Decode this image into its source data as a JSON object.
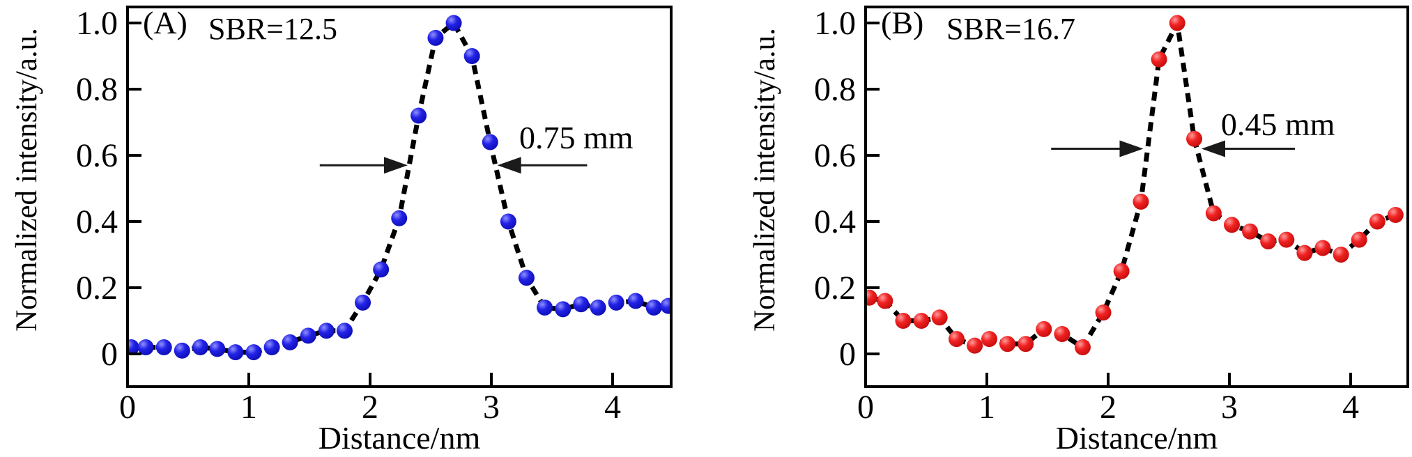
{
  "figure": {
    "background": "#ffffff",
    "axis_color": "#000000",
    "curve_color": "#000000",
    "annotation_color": "#1a1a1a"
  },
  "chart_data": [
    {
      "type": "line",
      "panel_id": "A",
      "panel_label": "(A)",
      "sbr_label": "SBR=12.5",
      "xlabel": "Distance/nm",
      "ylabel": "Normalized intensity/a.u.",
      "xlim": [
        0,
        4.48
      ],
      "ylim": [
        -0.1,
        1.05
      ],
      "x_ticks": [
        0,
        1,
        2,
        3,
        4
      ],
      "x_tick_labels": [
        "0",
        "1",
        "2",
        "3",
        "4"
      ],
      "y_ticks": [
        0,
        0.2,
        0.4,
        0.6,
        0.8,
        1.0
      ],
      "y_tick_labels": [
        "0",
        "0.2",
        "0.4",
        "0.6",
        "0.8",
        "1.0"
      ],
      "grid": false,
      "line_style": "dashed",
      "marker": "circle",
      "marker_color": "#1c1ce0",
      "marker_gradient": [
        "#9090ff",
        "#2222e6",
        "#0d0db4"
      ],
      "series": [
        {
          "name": "intensity-profile-A",
          "x": [
            0.03,
            0.15,
            0.3,
            0.45,
            0.6,
            0.74,
            0.89,
            1.04,
            1.19,
            1.34,
            1.49,
            1.64,
            1.79,
            1.94,
            2.09,
            2.24,
            2.4,
            2.54,
            2.69,
            2.84,
            2.99,
            3.14,
            3.29,
            3.44,
            3.59,
            3.74,
            3.88,
            4.03,
            4.19,
            4.34,
            4.46
          ],
          "y": [
            0.02,
            0.02,
            0.02,
            0.01,
            0.02,
            0.015,
            0.005,
            0.005,
            0.02,
            0.035,
            0.055,
            0.07,
            0.07,
            0.155,
            0.255,
            0.41,
            0.72,
            0.955,
            1.0,
            0.9,
            0.64,
            0.4,
            0.23,
            0.14,
            0.135,
            0.15,
            0.14,
            0.155,
            0.16,
            0.14,
            0.145
          ]
        }
      ],
      "fwhm_annotation": {
        "text": "0.75 mm",
        "arrow_y": 0.57,
        "left_arrow": {
          "tail_x": 1.585,
          "tip_x": 2.31
        },
        "right_arrow": {
          "tail_x": 3.79,
          "tip_x": 3.05
        },
        "text_x": 3.7,
        "text_y": 0.655
      }
    },
    {
      "type": "line",
      "panel_id": "B",
      "panel_label": "(B)",
      "sbr_label": "SBR=16.7",
      "xlabel": "Distance/nm",
      "ylabel": "Normalized intensity/a.u.",
      "xlim": [
        0,
        4.47
      ],
      "ylim": [
        -0.1,
        1.05
      ],
      "x_ticks": [
        0,
        1,
        2,
        3,
        4
      ],
      "x_tick_labels": [
        "0",
        "1",
        "2",
        "3",
        "4"
      ],
      "y_ticks": [
        0,
        0.2,
        0.4,
        0.6,
        0.8,
        1.0
      ],
      "y_tick_labels": [
        "0",
        "0.2",
        "0.4",
        "0.6",
        "0.8",
        "1.0"
      ],
      "grid": false,
      "line_style": "dashed",
      "marker": "circle",
      "marker_color": "#ee1111",
      "marker_gradient": [
        "#ff9b9b",
        "#f02222",
        "#c40c0c"
      ],
      "series": [
        {
          "name": "intensity-profile-B",
          "x": [
            0.03,
            0.16,
            0.31,
            0.46,
            0.61,
            0.75,
            0.9,
            1.02,
            1.17,
            1.32,
            1.47,
            1.62,
            1.79,
            1.96,
            2.11,
            2.27,
            2.42,
            2.57,
            2.71,
            2.87,
            3.02,
            3.17,
            3.32,
            3.47,
            3.62,
            3.77,
            3.92,
            4.07,
            4.22,
            4.37
          ],
          "y": [
            0.17,
            0.16,
            0.1,
            0.1,
            0.11,
            0.045,
            0.025,
            0.045,
            0.03,
            0.03,
            0.075,
            0.06,
            0.02,
            0.125,
            0.25,
            0.46,
            0.89,
            1.0,
            0.65,
            0.425,
            0.39,
            0.37,
            0.34,
            0.345,
            0.305,
            0.32,
            0.3,
            0.345,
            0.4,
            0.42
          ]
        }
      ],
      "fwhm_annotation": {
        "text": "0.45 mm",
        "arrow_y": 0.62,
        "left_arrow": {
          "tail_x": 1.53,
          "tip_x": 2.29
        },
        "right_arrow": {
          "tail_x": 3.54,
          "tip_x": 2.77
        },
        "text_x": 3.4,
        "text_y": 0.695
      }
    }
  ]
}
